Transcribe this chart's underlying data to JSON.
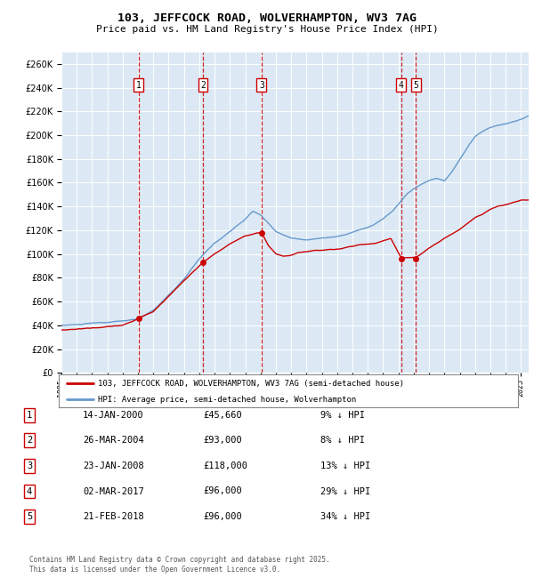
{
  "title": "103, JEFFCOCK ROAD, WOLVERHAMPTON, WV3 7AG",
  "subtitle": "Price paid vs. HM Land Registry's House Price Index (HPI)",
  "plot_bg_color": "#dce9f5",
  "hpi_color": "#6699cc",
  "price_color": "#cc0000",
  "ylim": [
    0,
    270000
  ],
  "yticks": [
    0,
    20000,
    40000,
    60000,
    80000,
    100000,
    120000,
    140000,
    160000,
    180000,
    200000,
    220000,
    240000,
    260000
  ],
  "sales": [
    {
      "label": "1",
      "date": "14-JAN-2000",
      "year": 2000.04,
      "price": 45660,
      "hpi_pct": "9% ↓ HPI"
    },
    {
      "label": "2",
      "date": "26-MAR-2004",
      "year": 2004.23,
      "price": 93000,
      "hpi_pct": "8% ↓ HPI"
    },
    {
      "label": "3",
      "date": "23-JAN-2008",
      "year": 2008.06,
      "price": 118000,
      "hpi_pct": "13% ↓ HPI"
    },
    {
      "label": "4",
      "date": "02-MAR-2017",
      "year": 2017.17,
      "price": 96000,
      "hpi_pct": "29% ↓ HPI"
    },
    {
      "label": "5",
      "date": "21-FEB-2018",
      "year": 2018.13,
      "price": 96000,
      "hpi_pct": "34% ↓ HPI"
    }
  ],
  "legend_line1": "103, JEFFCOCK ROAD, WOLVERHAMPTON, WV3 7AG (semi-detached house)",
  "legend_line2": "HPI: Average price, semi-detached house, Wolverhampton",
  "footer": "Contains HM Land Registry data © Crown copyright and database right 2025.\nThis data is licensed under the Open Government Licence v3.0.",
  "xmin": 1995,
  "xmax": 2025.5,
  "hpi_knots_x": [
    1995,
    1996,
    1997,
    1998,
    1999,
    2000,
    2001,
    2002,
    2003,
    2004,
    2005,
    2006,
    2007,
    2007.5,
    2008,
    2008.5,
    2009,
    2009.5,
    2010,
    2010.5,
    2011,
    2011.5,
    2012,
    2012.5,
    2013,
    2013.5,
    2014,
    2014.5,
    2015,
    2015.5,
    2016,
    2016.5,
    2017,
    2017.5,
    2018,
    2018.5,
    2019,
    2019.5,
    2020,
    2020.5,
    2021,
    2021.5,
    2022,
    2022.5,
    2023,
    2023.5,
    2024,
    2024.5,
    2025,
    2025.5
  ],
  "hpi_knots_y": [
    40000,
    40500,
    41500,
    42000,
    43000,
    44500,
    52000,
    65000,
    78000,
    95000,
    108000,
    118000,
    128000,
    135000,
    132000,
    125000,
    118000,
    115000,
    113000,
    112000,
    111000,
    112000,
    113000,
    113000,
    114000,
    115000,
    117000,
    119000,
    121000,
    124000,
    128000,
    133000,
    140000,
    148000,
    153000,
    157000,
    160000,
    162000,
    160000,
    168000,
    178000,
    188000,
    197000,
    202000,
    205000,
    207000,
    208000,
    210000,
    212000,
    215000
  ],
  "price_knots_x": [
    1995,
    1997,
    1999,
    2000.04,
    2001,
    2002,
    2003,
    2004.23,
    2005,
    2006,
    2007,
    2008.06,
    2008.5,
    2009,
    2009.5,
    2010,
    2010.5,
    2011,
    2011.5,
    2012,
    2012.5,
    2013,
    2013.5,
    2014,
    2014.5,
    2015,
    2015.5,
    2016,
    2016.5,
    2017.17,
    2018.13,
    2019,
    2019.5,
    2020,
    2020.5,
    2021,
    2021.5,
    2022,
    2022.5,
    2023,
    2023.5,
    2024,
    2024.5,
    2025,
    2025.5
  ],
  "price_knots_y": [
    36000,
    38000,
    40000,
    45660,
    52000,
    65000,
    78000,
    93000,
    100000,
    108000,
    115000,
    118000,
    107000,
    100000,
    98000,
    99000,
    101000,
    102000,
    103000,
    103000,
    104000,
    104000,
    105000,
    106000,
    107000,
    107000,
    108000,
    110000,
    112000,
    96000,
    96000,
    104000,
    108000,
    112000,
    116000,
    120000,
    125000,
    130000,
    133000,
    137000,
    140000,
    141000,
    143000,
    145000,
    145000
  ]
}
